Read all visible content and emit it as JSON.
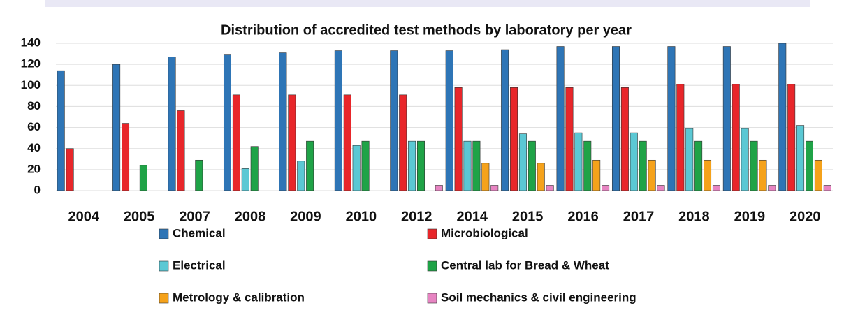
{
  "chart_data": {
    "type": "bar",
    "title": "Distribution of accredited test methods by laboratory per year",
    "categories": [
      "2004",
      "2005",
      "2007",
      "2008",
      "2009",
      "2010",
      "2012",
      "2014",
      "2015",
      "2016",
      "2017",
      "2018",
      "2019",
      "2020"
    ],
    "series": [
      {
        "name": "Chemical",
        "color": "#2e75b6",
        "values": [
          114,
          120,
          127,
          129,
          131,
          133,
          133,
          133,
          134,
          137,
          137,
          137,
          137,
          140
        ]
      },
      {
        "name": "Microbiological",
        "color": "#e8262a",
        "values": [
          40,
          64,
          76,
          91,
          91,
          91,
          91,
          98,
          98,
          98,
          98,
          101,
          101,
          101
        ]
      },
      {
        "name": "Electrical",
        "color": "#5bc8d4",
        "values": [
          0,
          0,
          0,
          21,
          28,
          43,
          47,
          47,
          54,
          55,
          55,
          59,
          59,
          62
        ]
      },
      {
        "name": "Central lab for Bread & Wheat",
        "color": "#1fa347",
        "values": [
          0,
          24,
          29,
          42,
          47,
          47,
          47,
          47,
          47,
          47,
          47,
          47,
          47,
          47
        ]
      },
      {
        "name": "Metrology & calibration",
        "color": "#f5a21b",
        "values": [
          0,
          0,
          0,
          0,
          0,
          0,
          0,
          26,
          26,
          29,
          29,
          29,
          29,
          29
        ]
      },
      {
        "name": "Soil mechanics & civil engineering",
        "color": "#e784c2",
        "values": [
          0,
          0,
          0,
          0,
          0,
          0,
          5,
          5,
          5,
          5,
          5,
          5,
          5,
          5
        ]
      }
    ],
    "ylim": [
      0,
      140
    ],
    "yticks": [
      0,
      20,
      40,
      60,
      80,
      100,
      120,
      140
    ],
    "grid": true
  }
}
